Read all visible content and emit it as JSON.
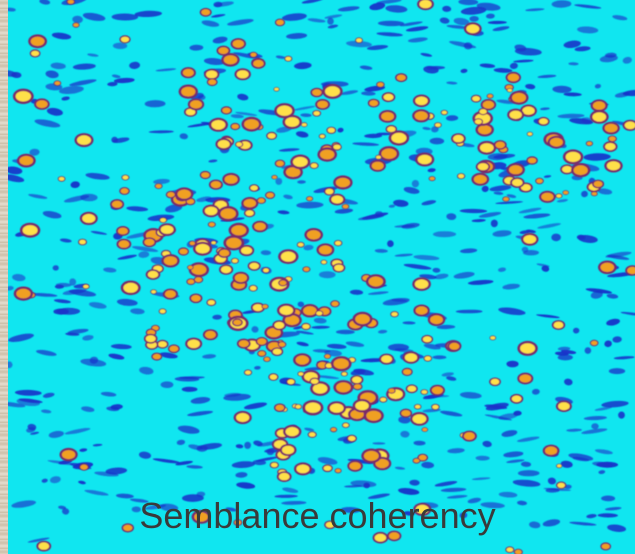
{
  "caption": "Semblance coherency",
  "colors": {
    "background": "#10e6f0",
    "low_coherency": "#1a2fc8",
    "mid_coherency": "#7a2a6a",
    "high_coherency": "#f0a020",
    "peak_coherency": "#ffe04a",
    "caption_text": "#3a3a3a",
    "frame": "#cfc3b0"
  }
}
